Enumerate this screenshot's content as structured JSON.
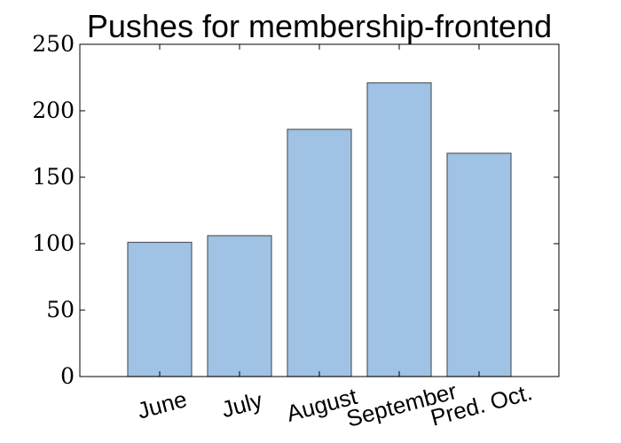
{
  "chart_data": {
    "type": "bar",
    "title": "Pushes for membership-frontend",
    "xlabel": "",
    "ylabel": "",
    "categories": [
      "June",
      "July",
      "August",
      "September",
      "Pred. Oct."
    ],
    "values": [
      101,
      106,
      186,
      221,
      168
    ],
    "ylim": [
      0,
      250
    ],
    "yticks": [
      "0",
      "50",
      "100",
      "150",
      "200",
      "250"
    ],
    "grid": false,
    "bar_color": "#a0c2e4",
    "bar_edge_color": "#555a60"
  }
}
